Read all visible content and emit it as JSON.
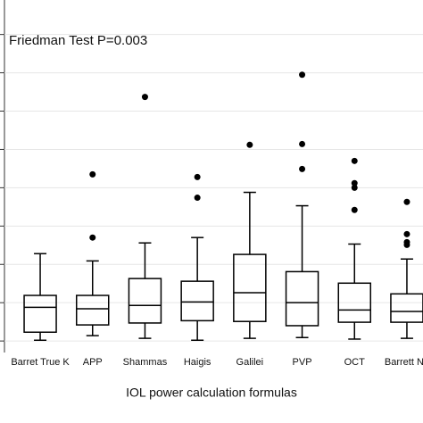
{
  "chart_data": {
    "type": "box",
    "annotation": "Friedman Test P=0.003",
    "x_label": "IOL power calculation formulas",
    "categories": [
      "Barret True K",
      "APP",
      "Shammas",
      "Haigis",
      "Galilei",
      "PVP",
      "OCT",
      "Barrett No"
    ],
    "boxes": [
      {
        "min": 0.02,
        "q1": 0.23,
        "median": 0.88,
        "q3": 1.19,
        "max": 2.28,
        "outliers": []
      },
      {
        "min": 0.14,
        "q1": 0.42,
        "median": 0.84,
        "q3": 1.19,
        "max": 2.09,
        "outliers": [
          2.7,
          4.35
        ]
      },
      {
        "min": 0.07,
        "q1": 0.47,
        "median": 0.93,
        "q3": 1.63,
        "max": 2.56,
        "outliers": [
          6.37
        ]
      },
      {
        "min": 0.02,
        "q1": 0.53,
        "median": 1.02,
        "q3": 1.56,
        "max": 2.7,
        "outliers": [
          3.74,
          4.28
        ]
      },
      {
        "min": 0.07,
        "q1": 0.51,
        "median": 1.26,
        "q3": 2.26,
        "max": 3.88,
        "outliers": [
          5.12
        ]
      },
      {
        "min": 0.09,
        "q1": 0.4,
        "median": 1.0,
        "q3": 1.81,
        "max": 3.53,
        "outliers": [
          4.49,
          5.14,
          6.95
        ]
      },
      {
        "min": 0.05,
        "q1": 0.49,
        "median": 0.81,
        "q3": 1.51,
        "max": 2.53,
        "outliers": [
          3.42,
          4.0,
          4.12,
          4.7
        ]
      },
      {
        "min": 0.07,
        "q1": 0.49,
        "median": 0.77,
        "q3": 1.23,
        "max": 2.14,
        "outliers": [
          2.51,
          2.58,
          2.79,
          3.63
        ]
      }
    ],
    "color": "#000000",
    "ylim": [
      -0.3,
      8.9
    ],
    "yticks": [
      0,
      1,
      2,
      3,
      4,
      5,
      6,
      7,
      8
    ],
    "grid": true
  }
}
